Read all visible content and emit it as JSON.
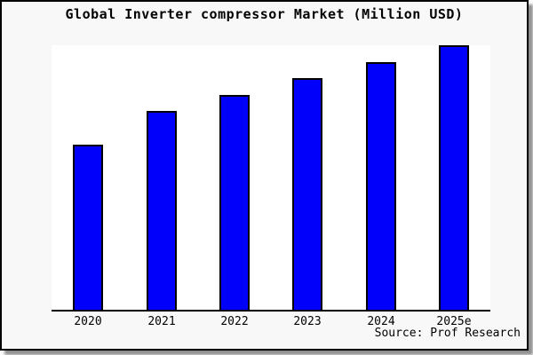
{
  "title": "Global Inverter compressor Market (Million USD)",
  "source": "Source: Prof Research",
  "colors": {
    "bar_fill": "#0000fb",
    "bar_border": "#000000",
    "page_background": "#f8f8f8",
    "plot_background": "#ffffff",
    "axis": "#000000",
    "frame_border": "#000000",
    "shadow": "#8f8f8f",
    "text": "#000000"
  },
  "chart_data": {
    "type": "bar",
    "categories": [
      "2020",
      "2021",
      "2022",
      "2023",
      "2024",
      "2025e"
    ],
    "values": [
      10,
      12,
      13,
      14,
      15,
      16
    ],
    "title": "Global Inverter compressor Market (Million USD)",
    "xlabel": "",
    "ylabel": "",
    "ylim": [
      0,
      16
    ],
    "y_axis_visible": false,
    "gridlines": false,
    "legend": false,
    "data_labels": false,
    "note": "No y-axis or value labels are rendered in the image; values are relative units estimated from bar heights (tallest bar spans the full plot height)."
  }
}
